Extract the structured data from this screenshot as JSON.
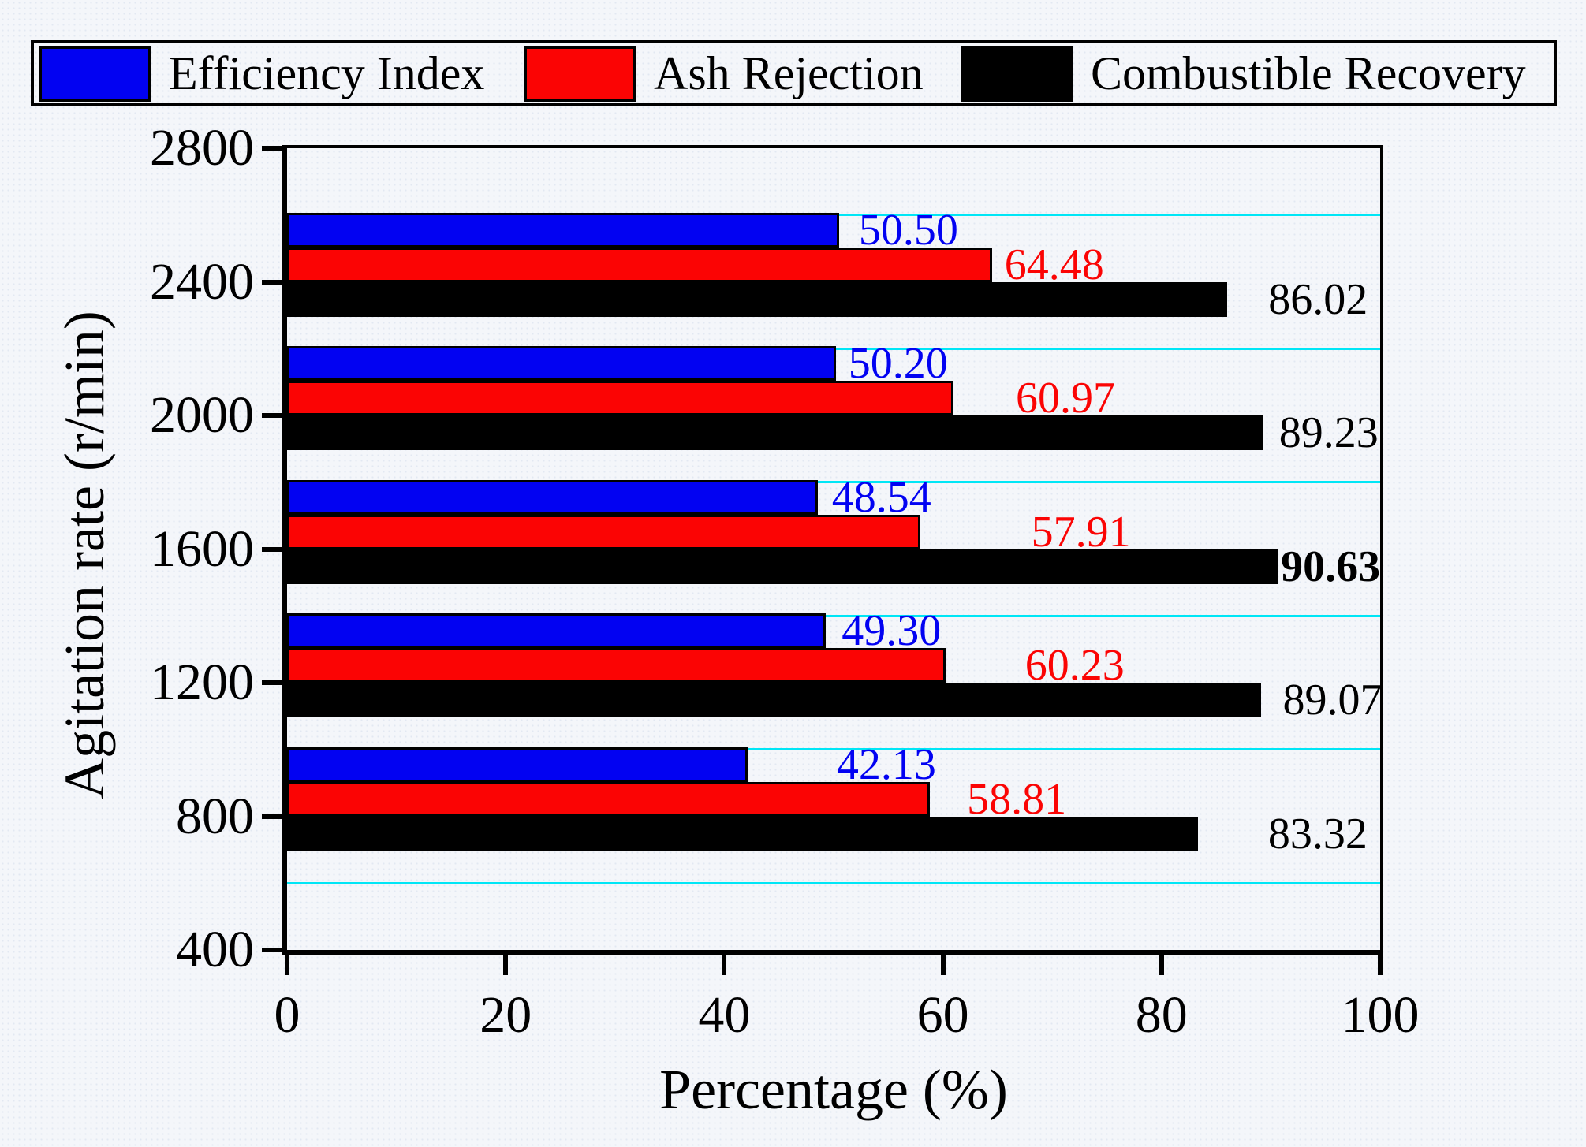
{
  "figure": {
    "xlabel": "Percentage (%)",
    "ylabel": "Agitation rate (r/min)"
  },
  "chart_data": {
    "type": "bar",
    "orientation": "horizontal",
    "title": "",
    "xlabel": "Percentage (%)",
    "ylabel": "Agitation rate (r/min)",
    "categories": [
      "2400",
      "2000",
      "1600",
      "1200",
      "800"
    ],
    "series": [
      {
        "name": "Efficiency Index",
        "color": "#0202f2",
        "values": [
          50.5,
          50.2,
          48.54,
          49.3,
          42.13
        ]
      },
      {
        "name": "Ash Rejection",
        "color": "#fb0404",
        "values": [
          64.48,
          60.97,
          57.91,
          60.23,
          58.81
        ]
      },
      {
        "name": "Combustible Recovery",
        "color": "#000000",
        "values": [
          86.02,
          89.23,
          90.63,
          89.07,
          83.32
        ],
        "bold_labels": [
          false,
          false,
          true,
          false,
          false
        ]
      }
    ],
    "x_axis": {
      "range": [
        0,
        100
      ],
      "ticks": [
        "0",
        "20",
        "40",
        "60",
        "80",
        "100"
      ]
    },
    "y_axis": {
      "range": [
        400,
        2800
      ],
      "ticks": [
        "2800",
        "2400",
        "2000",
        "1600",
        "1200",
        "800",
        "400"
      ]
    },
    "gridlines": {
      "color": "#00e6f6",
      "y_values": [
        2600,
        2200,
        1800,
        1400,
        1000,
        600
      ]
    },
    "legend_position": "top",
    "layout_hints": {
      "label_dx": [
        [
          25,
          16,
          18,
          20,
          113
        ],
        [
          16,
          79,
          141,
          101,
          47
        ],
        [
          52,
          21,
          4,
          28,
          89
        ]
      ]
    }
  }
}
